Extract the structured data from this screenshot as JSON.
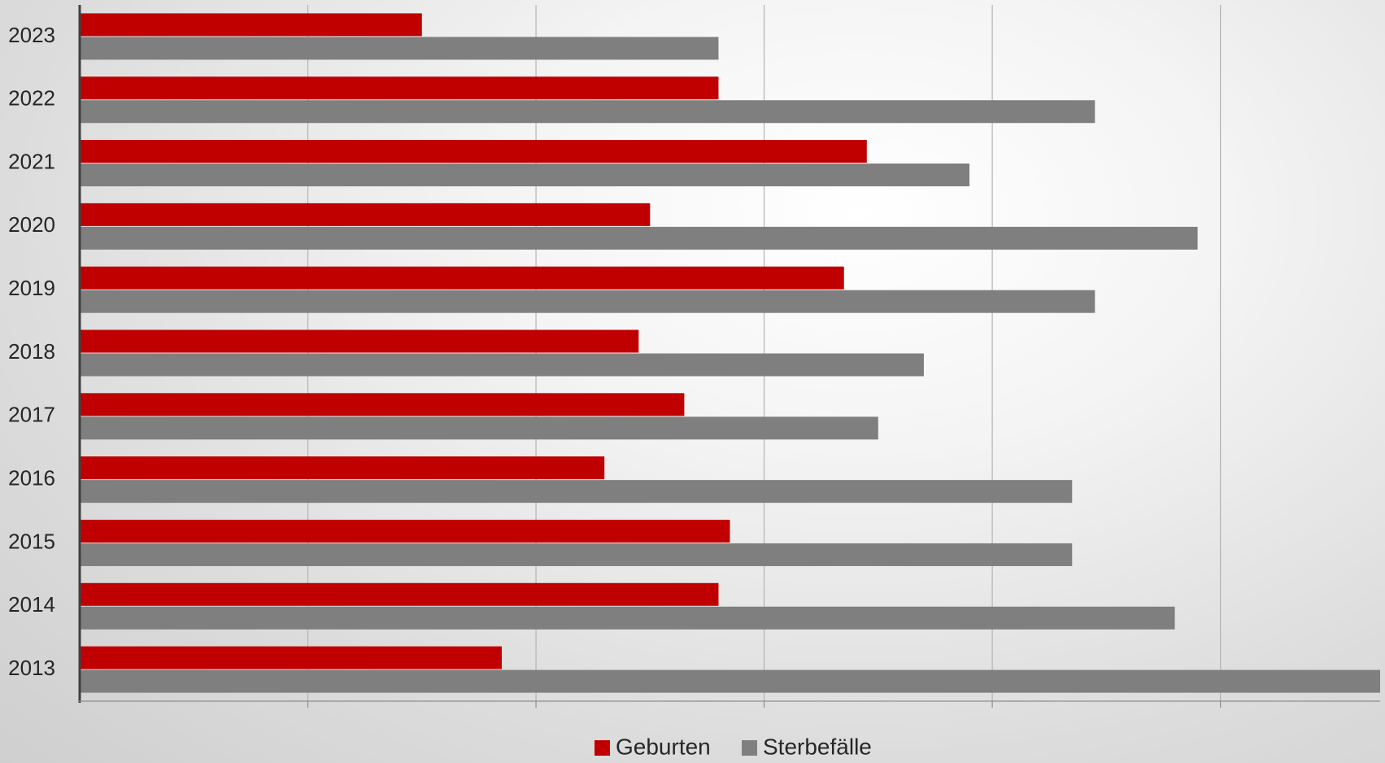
{
  "chart_data": {
    "type": "bar",
    "orientation": "horizontal",
    "categories": [
      "2023",
      "2022",
      "2021",
      "2020",
      "2019",
      "2018",
      "2017",
      "2016",
      "2015",
      "2014",
      "2013"
    ],
    "series": [
      {
        "name": "Geburten",
        "color": "#c00000",
        "values": [
          15,
          28,
          34.5,
          25,
          33.5,
          24.5,
          26.5,
          23,
          28.5,
          28,
          18.5
        ]
      },
      {
        "name": "Sterbefälle",
        "color": "#7f7f7f",
        "values": [
          28,
          44.5,
          39,
          49,
          44.5,
          37,
          35,
          43.5,
          43.5,
          48,
          57
        ]
      }
    ],
    "title": "",
    "xlabel": "",
    "ylabel": "",
    "xlim": [
      0,
      57
    ],
    "x_gridline_step": 10,
    "x_tick_labels_shown": false,
    "grid": true,
    "legend_position": "bottom"
  }
}
